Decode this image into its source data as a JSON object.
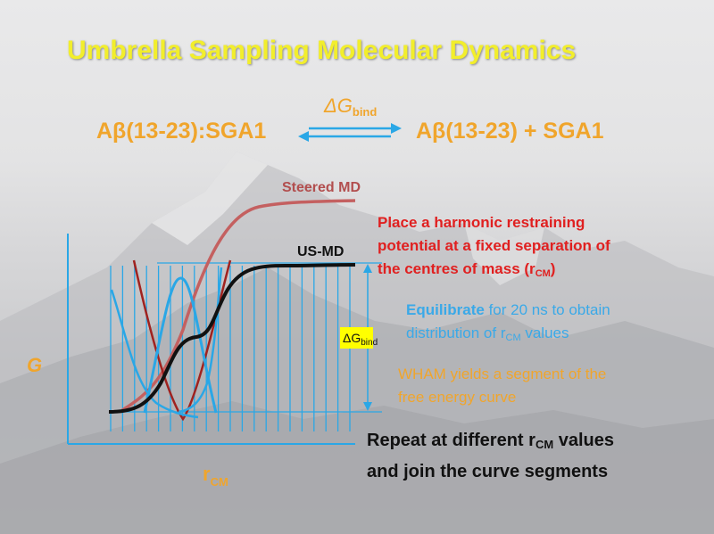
{
  "slide": {
    "title": "Umbrella Sampling Molecular Dynamics",
    "reaction": {
      "bound_complex": "Aβ(13-23):SGA1",
      "products": "Aβ(13-23)  +  SGA1",
      "arrow_label_symbol": "ΔG",
      "arrow_label_subscript": "bind"
    },
    "plot": {
      "steered_label": "Steered MD",
      "usmd_label": "US-MD",
      "y_axis_label": "G",
      "x_axis_label_main": "r",
      "x_axis_label_sub": "CM",
      "dg_box_symbol": "ΔG",
      "dg_box_subscript": "bind"
    },
    "notes": {
      "harmonic_line1": "Place a harmonic restraining",
      "harmonic_line2": "potential at a fixed separation of",
      "harmonic_line3_pre": "the centres of mass (r",
      "harmonic_line3_sub": "CM",
      "harmonic_line3_post": ")",
      "equil_bold": "Equilibrate",
      "equil_line1_rest": " for 20 ns to obtain",
      "equil_line2_pre": "distribution of r",
      "equil_line2_sub": "CM",
      "equil_line2_post": " values",
      "wham_line1": "WHAM yields a segment of the",
      "wham_line2": "free energy curve",
      "repeat_line1_pre": "Repeat at different r",
      "repeat_line1_sub": "CM",
      "repeat_line1_post": " values",
      "repeat_line2": "and join the curve segments"
    },
    "colors": {
      "title": "#f2ee2c",
      "orange_text": "#f0a52c",
      "steered_curve": "#c46060",
      "usmd_curve": "#111111",
      "window_lines": "#2aa7e6",
      "harmonic_text": "#e02020",
      "equil_text": "#3aa9e8",
      "dg_box": "#ffff00"
    }
  }
}
